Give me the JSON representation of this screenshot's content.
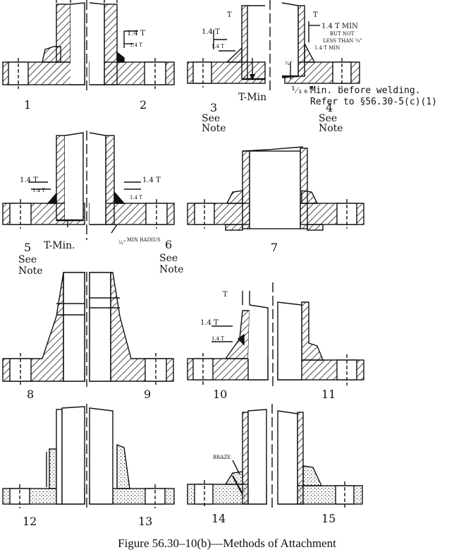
{
  "caption": "Figure 56.30–10(b)—Methods of  Attachment",
  "numbers": {
    "n1": "1",
    "n2": "2",
    "n3": "3",
    "n4": "4",
    "n5": "5",
    "n6": "6",
    "n7": "7",
    "n8": "8",
    "n9": "9",
    "n10": "10",
    "n11": "11",
    "n12": "12",
    "n13": "13",
    "n14": "14",
    "n15": "15"
  },
  "labels": {
    "T": "T",
    "t14": "1.4 T",
    "t14s": "1.4 T",
    "t_min": "T-Min",
    "t_min_dot": "T-Min.",
    "see": "See",
    "note": "Note",
    "min_before_welding": "Min. before welding.",
    "refer": "Refer to §56.30-5(c)(1)",
    "fraction_16": "¹⁄₁₆”",
    "fraction_4": "¹⁄₄”",
    "t14_min": "1.4 T MIN",
    "but_not": "BUT NOT",
    "less_than": "LESS THAN ¼”",
    "t14_min_small": "1.4 T MIN",
    "min_radius": "MIN RADIUS",
    "braze": "BRAZE"
  }
}
